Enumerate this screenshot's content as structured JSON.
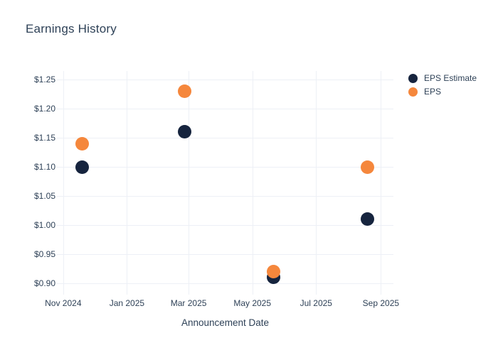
{
  "title": "Earnings History",
  "x_axis_title": "Announcement Date",
  "colors": {
    "eps_estimate": "#16243e",
    "eps": "#f5873c",
    "grid": "#edf0f6",
    "text": "#2e4157",
    "background": "#ffffff"
  },
  "legend": {
    "items": [
      {
        "label": "EPS Estimate",
        "color": "#16243e"
      },
      {
        "label": "EPS",
        "color": "#f5873c"
      }
    ]
  },
  "chart_data": {
    "type": "scatter",
    "title": "Earnings History",
    "xlabel": "Announcement Date",
    "ylabel": "",
    "grid": true,
    "legend_position": "outside-top-right",
    "x_ticks": [
      {
        "label": "Nov 2024",
        "date": "2024-11-01"
      },
      {
        "label": "Jan 2025",
        "date": "2025-01-01"
      },
      {
        "label": "Mar 2025",
        "date": "2025-03-01"
      },
      {
        "label": "May 2025",
        "date": "2025-05-01"
      },
      {
        "label": "Jul 2025",
        "date": "2025-07-01"
      },
      {
        "label": "Sep 2025",
        "date": "2025-09-01"
      }
    ],
    "y_ticks": [
      {
        "label": "$1.25",
        "value": 1.25
      },
      {
        "label": "$1.20",
        "value": 1.2
      },
      {
        "label": "$1.15",
        "value": 1.15
      },
      {
        "label": "$1.10",
        "value": 1.1
      },
      {
        "label": "$1.05",
        "value": 1.05
      },
      {
        "label": "$1.00",
        "value": 1.0
      },
      {
        "label": "$0.95",
        "value": 0.95
      },
      {
        "label": "$0.90",
        "value": 0.9
      }
    ],
    "x_range": [
      "2024-10-26",
      "2025-09-13"
    ],
    "y_range": [
      0.88,
      1.265
    ],
    "series": [
      {
        "name": "EPS Estimate",
        "color": "#16243e",
        "points": [
          {
            "date": "2024-11-19",
            "value": 1.1
          },
          {
            "date": "2025-02-25",
            "value": 1.16
          },
          {
            "date": "2025-05-21",
            "value": 0.91
          },
          {
            "date": "2025-08-19",
            "value": 1.01
          }
        ]
      },
      {
        "name": "EPS",
        "color": "#f5873c",
        "points": [
          {
            "date": "2024-11-19",
            "value": 1.14
          },
          {
            "date": "2025-02-25",
            "value": 1.23
          },
          {
            "date": "2025-05-21",
            "value": 0.92
          },
          {
            "date": "2025-08-19",
            "value": 1.1
          }
        ]
      }
    ]
  }
}
